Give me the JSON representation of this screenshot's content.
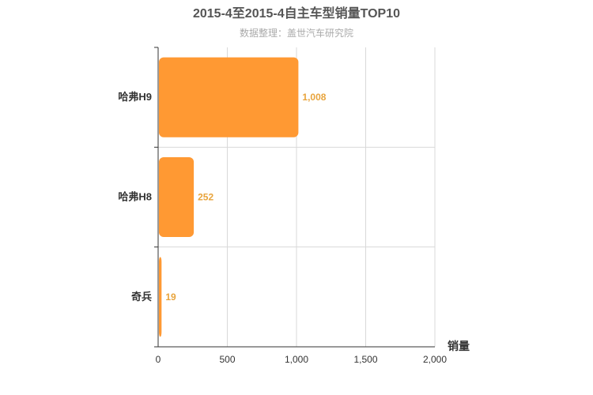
{
  "chart_data": {
    "type": "bar",
    "orientation": "horizontal",
    "title": "2015-4至2015-4自主车型销量TOP10",
    "subtitle": "数据整理：盖世汽车研究院",
    "categories": [
      "哈弗H9",
      "哈弗H8",
      "奇兵"
    ],
    "values": [
      1008,
      252,
      19
    ],
    "value_labels": [
      "1,008",
      "252",
      "19"
    ],
    "xlabel": "销量",
    "xlim": [
      0,
      2000
    ],
    "xticks": [
      0,
      500,
      1000,
      1500,
      2000
    ],
    "xtick_labels": [
      "0",
      "500",
      "1,000",
      "1,500",
      "2,000"
    ],
    "grid": true,
    "bar_color": "#ff9933",
    "label_color": "#e8a43c"
  }
}
